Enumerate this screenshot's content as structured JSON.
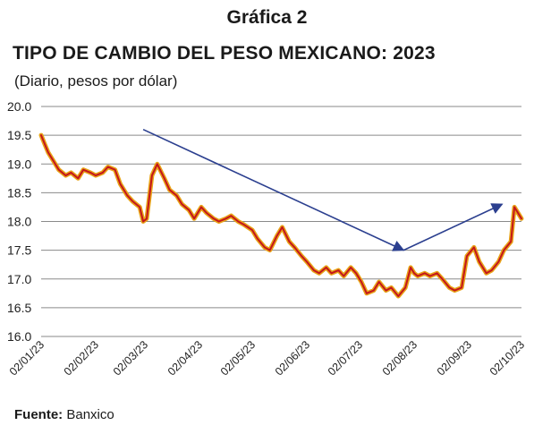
{
  "header": {
    "title_line1": "Gráfica 2",
    "title_line2": "TIPO DE CAMBIO DEL PESO MEXICANO: 2023",
    "subtitle": "(Diario, pesos por dólar)"
  },
  "footer": {
    "source_label": "Fuente:",
    "source_value": "Banxico"
  },
  "colors": {
    "line_outer": "#e8a317",
    "line_inner": "#c4161c",
    "arrow": "#2b3f8f",
    "grid": "#8a8a8a"
  },
  "chart_data": {
    "type": "line",
    "title": "TIPO DE CAMBIO DEL PESO MEXICANO: 2023",
    "subtitle": "(Diario, pesos por dólar)",
    "xlabel": "",
    "ylabel": "",
    "ylim": [
      16.0,
      20.0
    ],
    "yticks": [
      20.0,
      19.5,
      19.0,
      18.5,
      18.0,
      17.5,
      17.0,
      16.5,
      16.0
    ],
    "xlim": [
      "2023-01-02",
      "2023-10-02"
    ],
    "xticks": [
      "02/01/23",
      "02/02/23",
      "02/03/23",
      "02/04/23",
      "02/05/23",
      "02/06/23",
      "02/07/23",
      "02/08/23",
      "02/09/23",
      "02/10/23"
    ],
    "grid": true,
    "legend": "none",
    "series": [
      {
        "x": [
          "2023-01-02",
          "2023-01-04",
          "2023-01-06",
          "2023-01-09",
          "2023-01-12",
          "2023-01-16",
          "2023-01-19",
          "2023-01-23",
          "2023-01-26",
          "2023-01-30",
          "2023-02-02",
          "2023-02-06",
          "2023-02-09",
          "2023-02-13",
          "2023-02-16",
          "2023-02-20",
          "2023-02-23",
          "2023-02-27",
          "2023-03-01",
          "2023-03-03",
          "2023-03-06",
          "2023-03-09",
          "2023-03-13",
          "2023-03-16",
          "2023-03-20",
          "2023-03-23",
          "2023-03-27",
          "2023-03-30",
          "2023-04-03",
          "2023-04-06",
          "2023-04-10",
          "2023-04-13",
          "2023-04-17",
          "2023-04-20",
          "2023-04-24",
          "2023-04-27",
          "2023-05-02",
          "2023-05-05",
          "2023-05-09",
          "2023-05-12",
          "2023-05-16",
          "2023-05-19",
          "2023-05-23",
          "2023-05-26",
          "2023-05-30",
          "2023-06-02",
          "2023-06-06",
          "2023-06-09",
          "2023-06-13",
          "2023-06-16",
          "2023-06-20",
          "2023-06-23",
          "2023-06-27",
          "2023-06-30",
          "2023-07-03",
          "2023-07-06",
          "2023-07-10",
          "2023-07-13",
          "2023-07-17",
          "2023-07-20",
          "2023-07-24",
          "2023-07-28",
          "2023-07-31",
          "2023-08-02",
          "2023-08-04",
          "2023-08-08",
          "2023-08-11",
          "2023-08-15",
          "2023-08-18",
          "2023-08-22",
          "2023-08-25",
          "2023-08-29",
          "2023-09-01",
          "2023-09-05",
          "2023-09-08",
          "2023-09-12",
          "2023-09-15",
          "2023-09-19",
          "2023-09-22",
          "2023-09-26",
          "2023-09-28",
          "2023-10-02"
        ],
        "values": [
          19.5,
          19.35,
          19.2,
          19.05,
          18.9,
          18.8,
          18.85,
          18.75,
          18.9,
          18.85,
          18.8,
          18.85,
          18.95,
          18.9,
          18.65,
          18.45,
          18.35,
          18.25,
          18.0,
          18.05,
          18.8,
          19.0,
          18.75,
          18.55,
          18.45,
          18.3,
          18.2,
          18.05,
          18.25,
          18.15,
          18.05,
          18.0,
          18.05,
          18.1,
          18.0,
          17.95,
          17.85,
          17.7,
          17.55,
          17.5,
          17.75,
          17.9,
          17.65,
          17.55,
          17.4,
          17.3,
          17.15,
          17.1,
          17.2,
          17.1,
          17.15,
          17.05,
          17.2,
          17.1,
          16.95,
          16.75,
          16.8,
          16.95,
          16.8,
          16.85,
          16.7,
          16.85,
          17.2,
          17.1,
          17.05,
          17.1,
          17.05,
          17.1,
          17.0,
          16.85,
          16.8,
          16.85,
          17.4,
          17.55,
          17.3,
          17.1,
          17.15,
          17.3,
          17.5,
          17.65,
          18.25,
          18.05
        ]
      }
    ],
    "annotations": [
      {
        "type": "arrow",
        "from": [
          "2023-03-01",
          19.6
        ],
        "to": [
          "2023-07-27",
          17.5
        ]
      },
      {
        "type": "arrow",
        "from": [
          "2023-07-27",
          17.5
        ],
        "to": [
          "2023-09-21",
          18.3
        ]
      }
    ]
  }
}
